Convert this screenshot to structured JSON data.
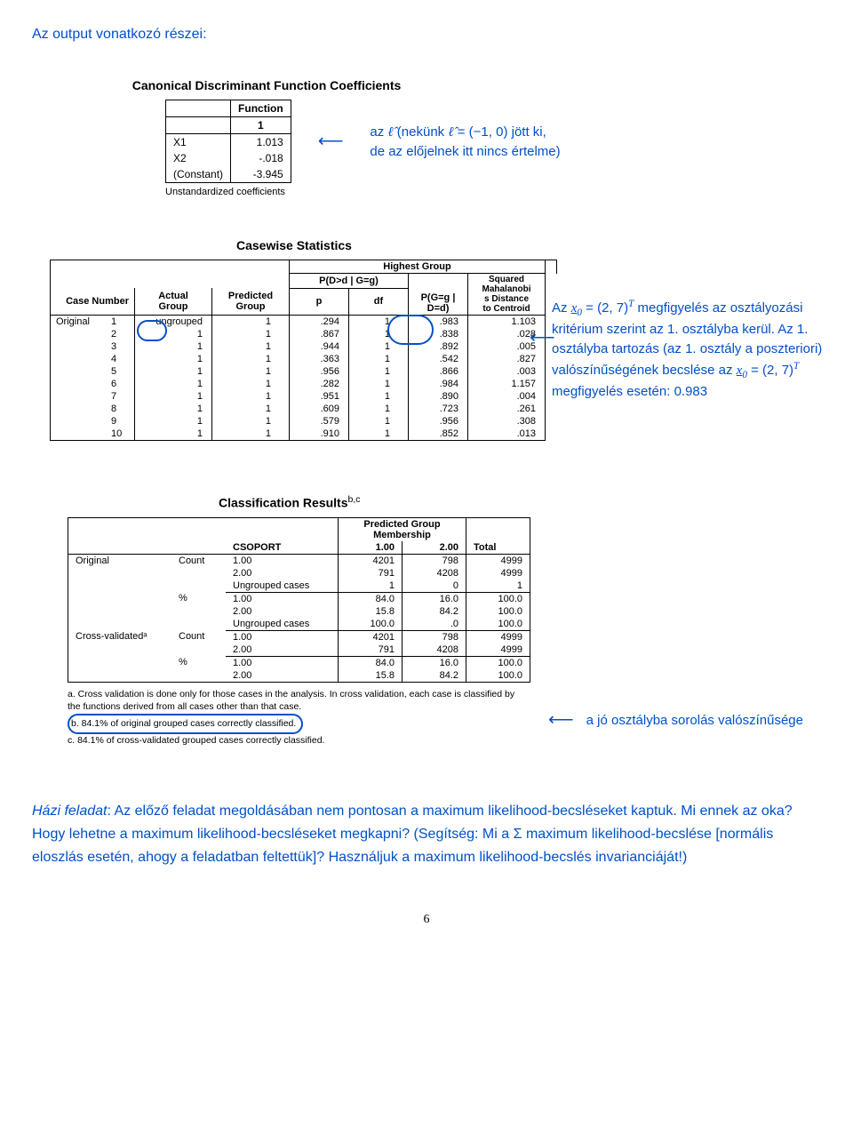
{
  "intro": "Az output vonatkozó részei:",
  "table1": {
    "title": "Canonical Discriminant Function Coefficients",
    "col_header_top": "Function",
    "col_header_num": "1",
    "rows": [
      {
        "label": "X1",
        "val": "1.013"
      },
      {
        "label": "X2",
        "val": "-.018"
      },
      {
        "label": "(Constant)",
        "val": "-3.945"
      }
    ],
    "footer": "Unstandardized coefficients",
    "side_line1_a": "az ",
    "side_line1_b": " (nekünk ",
    "side_line1_c": " = (−1, 0) jött ki,",
    "side_line2": "de az előjelnek itt nincs értelme)"
  },
  "table2": {
    "title": "Casewise Statistics",
    "banner": "Highest Group",
    "hdr_case": "Case Number",
    "hdr_actual": "Actual\nGroup",
    "hdr_pred": "Predicted\nGroup",
    "hdr_pdg": "P(D>d | G=g)",
    "hdr_p": "p",
    "hdr_df": "df",
    "hdr_pgd": "P(G=g |\nD=d)",
    "hdr_sq": "Squared\nMahalanobi\ns Distance\nto Centroid",
    "rowlabel": "Original",
    "rows": [
      {
        "n": "1",
        "ag": "ungrouped",
        "pg": "1",
        "p": ".294",
        "df": "1",
        "pgd": ".983",
        "sq": "1.103"
      },
      {
        "n": "2",
        "ag": "1",
        "pg": "1",
        "p": ".867",
        "df": "1",
        "pgd": ".838",
        "sq": ".028"
      },
      {
        "n": "3",
        "ag": "1",
        "pg": "1",
        "p": ".944",
        "df": "1",
        "pgd": ".892",
        "sq": ".005"
      },
      {
        "n": "4",
        "ag": "1",
        "pg": "1",
        "p": ".363",
        "df": "1",
        "pgd": ".542",
        "sq": ".827"
      },
      {
        "n": "5",
        "ag": "1",
        "pg": "1",
        "p": ".956",
        "df": "1",
        "pgd": ".866",
        "sq": ".003"
      },
      {
        "n": "6",
        "ag": "1",
        "pg": "1",
        "p": ".282",
        "df": "1",
        "pgd": ".984",
        "sq": "1.157"
      },
      {
        "n": "7",
        "ag": "1",
        "pg": "1",
        "p": ".951",
        "df": "1",
        "pgd": ".890",
        "sq": ".004"
      },
      {
        "n": "8",
        "ag": "1",
        "pg": "1",
        "p": ".609",
        "df": "1",
        "pgd": ".723",
        "sq": ".261"
      },
      {
        "n": "9",
        "ag": "1",
        "pg": "1",
        "p": ".579",
        "df": "1",
        "pgd": ".956",
        "sq": ".308"
      },
      {
        "n": "10",
        "ag": "1",
        "pg": "1",
        "p": ".910",
        "df": "1",
        "pgd": ".852",
        "sq": ".013"
      }
    ],
    "side_a1": "Az ",
    "side_a2": " = (2, 7)",
    "side_a3": " megfigyelés az osztályozási kritérium szerint az 1. osztályba kerül. Az 1. osztályba tartozás (az 1. osztály a poszteriori) valószínűségének becslése az ",
    "side_a4": " = (2, 7)",
    "side_a5": " megfigyelés esetén: 0.983"
  },
  "table3": {
    "title": "Classification Results",
    "sup": "b,c",
    "hdr_pred": "Predicted Group\nMembership",
    "hdr_csop": "CSOPORT",
    "hdr_c1": "1.00",
    "hdr_c2": "2.00",
    "hdr_tot": "Total",
    "groups": [
      {
        "glabel": "Original",
        "sublabel": "Count",
        "rows": [
          {
            "c": "1.00",
            "a": "4201",
            "b": "798",
            "t": "4999"
          },
          {
            "c": "2.00",
            "a": "791",
            "b": "4208",
            "t": "4999"
          },
          {
            "c": "Ungrouped cases",
            "a": "1",
            "b": "0",
            "t": "1"
          }
        ]
      },
      {
        "glabel": "",
        "sublabel": "%",
        "rows": [
          {
            "c": "1.00",
            "a": "84.0",
            "b": "16.0",
            "t": "100.0"
          },
          {
            "c": "2.00",
            "a": "15.8",
            "b": "84.2",
            "t": "100.0"
          },
          {
            "c": "Ungrouped cases",
            "a": "100.0",
            "b": ".0",
            "t": "100.0"
          }
        ]
      },
      {
        "glabel": "Cross-validatedᵃ",
        "sublabel": "Count",
        "rows": [
          {
            "c": "1.00",
            "a": "4201",
            "b": "798",
            "t": "4999"
          },
          {
            "c": "2.00",
            "a": "791",
            "b": "4208",
            "t": "4999"
          }
        ]
      },
      {
        "glabel": "",
        "sublabel": "%",
        "rows": [
          {
            "c": "1.00",
            "a": "84.0",
            "b": "16.0",
            "t": "100.0"
          },
          {
            "c": "2.00",
            "a": "15.8",
            "b": "84.2",
            "t": "100.0"
          }
        ]
      }
    ],
    "note_a": "a. Cross validation is done only for those cases in the analysis. In cross validation, each case is classified by the functions derived from all cases other than that case.",
    "note_b": "b. 84.1% of original grouped cases correctly classified.",
    "note_c": "c. 84.1% of cross-validated grouped cases correctly classified.",
    "side": "a jó osztályba sorolás valószínűsége"
  },
  "bottom": {
    "p1a": "Házi feladat",
    "p1b": ": Az előző feladat megoldásában nem pontosan a maximum likelihood-becsléseket kaptuk. Mi ennek az oka? Hogy lehetne a maximum likelihood-becsléseket megkapni? (Segítség: Mi a Σ maximum likelihood-becslése [normális eloszlás esetén, ahogy a feladatban feltettük]? Használjuk a maximum likelihood-becslés invarianciáját!)"
  },
  "pagenum": "6"
}
